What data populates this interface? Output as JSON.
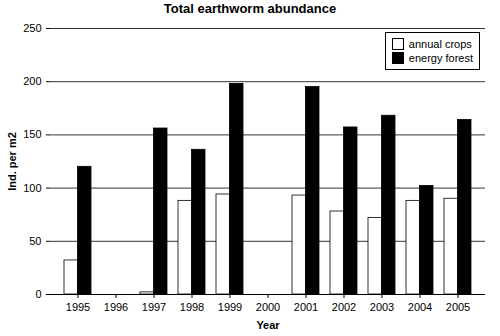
{
  "chart_data": {
    "type": "bar",
    "title": "Total earthworm abundance",
    "x_label": "Year",
    "y_label": "Ind. per m2",
    "categories": [
      "1995",
      "1996",
      "1997",
      "1998",
      "1999",
      "2000",
      "2001",
      "2002",
      "2003",
      "2004",
      "2005"
    ],
    "series": [
      {
        "name": "annual crops",
        "color": "#ffffff",
        "values": [
          32,
          null,
          2,
          88,
          94,
          null,
          93,
          78,
          72,
          88,
          90
        ]
      },
      {
        "name": "energy forest",
        "color": "#000000",
        "values": [
          120,
          null,
          156,
          136,
          198,
          null,
          195,
          157,
          168,
          102,
          164
        ]
      }
    ],
    "ylim": [
      0,
      250
    ],
    "yticks": [
      0,
      50,
      100,
      150,
      200,
      250
    ],
    "grid": true,
    "legend": "top-right"
  }
}
